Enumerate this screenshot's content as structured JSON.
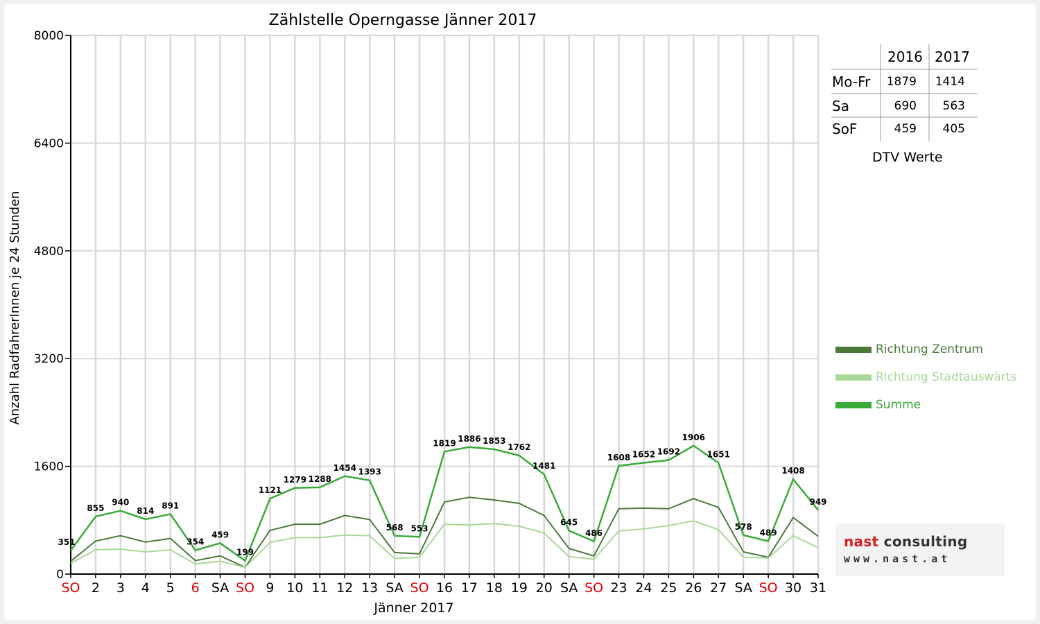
{
  "chart_data": {
    "type": "line",
    "title": "Zählstelle Operngasse Jänner 2017",
    "xlabel": "Jänner 2017",
    "ylabel": "Anzahl RadfahrerInnen je 24 Stunden",
    "ylim": [
      0,
      8000
    ],
    "yticks": [
      0,
      1600,
      3200,
      4800,
      6400,
      8000
    ],
    "grid": true,
    "legend_position": "right",
    "categories": [
      "SO",
      "2",
      "3",
      "4",
      "5",
      "6",
      "SA",
      "SO",
      "9",
      "10",
      "11",
      "12",
      "13",
      "SA",
      "SO",
      "16",
      "17",
      "18",
      "19",
      "20",
      "SA",
      "SO",
      "23",
      "24",
      "25",
      "26",
      "27",
      "SA",
      "SO",
      "30",
      "31"
    ],
    "red_categories": [
      0,
      5,
      7,
      14,
      21,
      28
    ],
    "series": [
      {
        "name": "Richtung Zentrum",
        "color": "#4a7a3a",
        "values": [
          190,
          490,
          570,
          475,
          530,
          200,
          270,
          100,
          650,
          740,
          740,
          870,
          810,
          320,
          300,
          1070,
          1140,
          1100,
          1050,
          870,
          380,
          270,
          970,
          980,
          970,
          1120,
          990,
          330,
          250,
          840,
          560
        ]
      },
      {
        "name": "Richtung Stadtauswärts",
        "color": "#a8d898",
        "values": [
          160,
          360,
          370,
          330,
          360,
          150,
          190,
          100,
          470,
          540,
          540,
          580,
          570,
          230,
          250,
          740,
          730,
          750,
          710,
          610,
          260,
          220,
          640,
          670,
          720,
          790,
          660,
          250,
          240,
          570,
          390
        ]
      },
      {
        "name": "Summe",
        "color": "#3aaa3a",
        "values": [
          351,
          855,
          940,
          814,
          891,
          354,
          459,
          199,
          1121,
          1279,
          1288,
          1454,
          1393,
          568,
          553,
          1819,
          1886,
          1853,
          1762,
          1481,
          645,
          486,
          1608,
          1652,
          1692,
          1906,
          1651,
          578,
          489,
          1408,
          949
        ]
      }
    ]
  },
  "dtv_table": {
    "years": [
      "2016",
      "2017"
    ],
    "rows": [
      {
        "label": "Mo-Fr",
        "y2016": "1879",
        "y2017": "1414"
      },
      {
        "label": "Sa",
        "y2016": "690",
        "y2017": "563"
      },
      {
        "label": "SoF",
        "y2016": "459",
        "y2017": "405"
      }
    ],
    "caption": "DTV Werte"
  },
  "logo": {
    "name_part1": "nast",
    "name_part2": " consulting",
    "url": "www.nast.at",
    "accent_color": "#d42020"
  }
}
